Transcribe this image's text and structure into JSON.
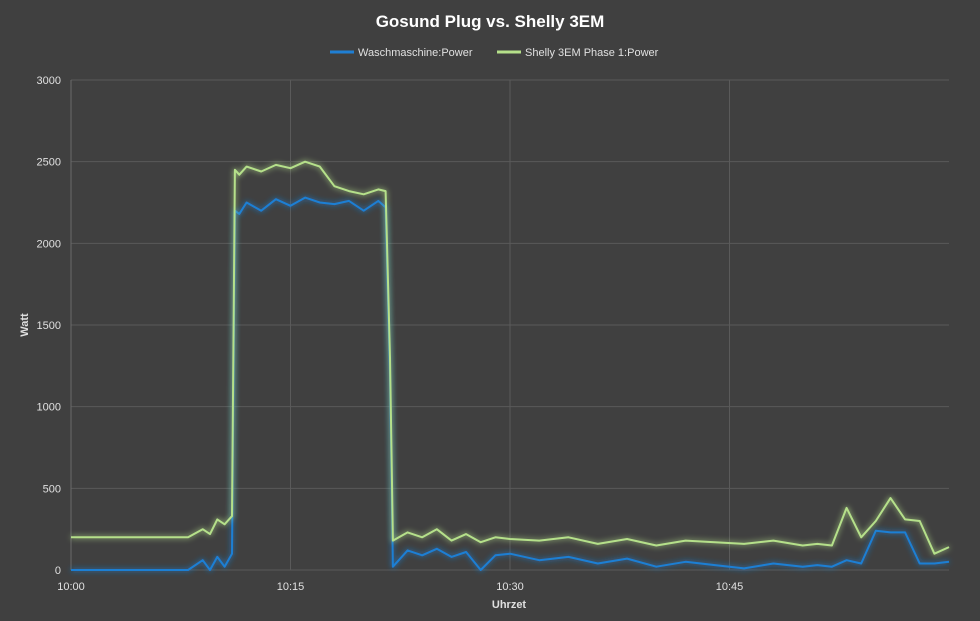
{
  "chart_data": {
    "type": "line",
    "title": "Gosund Plug vs. Shelly 3EM",
    "xlabel": "Uhrzet",
    "ylabel": "Watt",
    "ylim": [
      0,
      3000
    ],
    "yticks": [
      0,
      500,
      1000,
      1500,
      2000,
      2500,
      3000
    ],
    "x_unit": "time (hh:mm)",
    "xlim": [
      "10:00",
      "11:00"
    ],
    "xticks": [
      "10:00",
      "10:15",
      "10:30",
      "10:45"
    ],
    "grid": true,
    "legend_position": "top-center",
    "series": [
      {
        "name": "Waschmaschine:Power",
        "color": "#1f7fd4",
        "x": [
          "10:00",
          "10:08",
          "10:09",
          "10:09.5",
          "10:10",
          "10:10.5",
          "10:11",
          "10:11.2",
          "10:11.5",
          "10:12",
          "10:13",
          "10:14",
          "10:15",
          "10:16",
          "10:17",
          "10:18",
          "10:19",
          "10:20",
          "10:21",
          "10:21.5",
          "10:21.8",
          "10:22",
          "10:23",
          "10:24",
          "10:25",
          "10:26",
          "10:27",
          "10:28",
          "10:29",
          "10:30",
          "10:32",
          "10:34",
          "10:36",
          "10:38",
          "10:40",
          "10:42",
          "10:44",
          "10:46",
          "10:48",
          "10:50",
          "10:51",
          "10:52",
          "10:53",
          "10:54",
          "10:55",
          "10:56",
          "10:57",
          "10:58",
          "10:59",
          "11:00"
        ],
        "values": [
          0,
          0,
          60,
          0,
          80,
          20,
          100,
          2200,
          2180,
          2250,
          2200,
          2270,
          2230,
          2280,
          2250,
          2240,
          2260,
          2200,
          2260,
          2220,
          1200,
          20,
          120,
          90,
          130,
          80,
          110,
          0,
          90,
          100,
          60,
          80,
          40,
          70,
          20,
          50,
          30,
          10,
          40,
          20,
          30,
          20,
          60,
          40,
          240,
          230,
          230,
          40,
          40,
          50
        ]
      },
      {
        "name": "Shelly 3EM Phase 1:Power",
        "color": "#b5e08a",
        "x": [
          "10:00",
          "10:08",
          "10:09",
          "10:09.5",
          "10:10",
          "10:10.5",
          "10:11",
          "10:11.2",
          "10:11.5",
          "10:12",
          "10:13",
          "10:14",
          "10:15",
          "10:16",
          "10:17",
          "10:18",
          "10:19",
          "10:20",
          "10:21",
          "10:21.5",
          "10:21.8",
          "10:22",
          "10:23",
          "10:24",
          "10:25",
          "10:26",
          "10:27",
          "10:28",
          "10:29",
          "10:30",
          "10:32",
          "10:34",
          "10:36",
          "10:38",
          "10:40",
          "10:42",
          "10:44",
          "10:46",
          "10:48",
          "10:50",
          "10:51",
          "10:52",
          "10:53",
          "10:54",
          "10:55",
          "10:56",
          "10:57",
          "10:58",
          "10:59",
          "11:00"
        ],
        "values": [
          200,
          200,
          250,
          220,
          310,
          280,
          330,
          2450,
          2420,
          2470,
          2440,
          2480,
          2460,
          2500,
          2470,
          2350,
          2320,
          2300,
          2330,
          2320,
          1300,
          180,
          230,
          200,
          250,
          180,
          220,
          170,
          200,
          190,
          180,
          200,
          160,
          190,
          150,
          180,
          170,
          160,
          180,
          150,
          160,
          150,
          380,
          200,
          300,
          440,
          310,
          300,
          100,
          140
        ]
      }
    ]
  }
}
